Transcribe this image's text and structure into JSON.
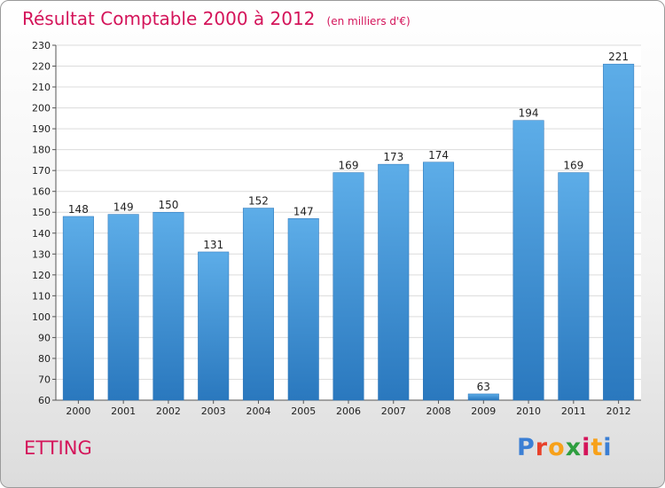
{
  "chart_data": {
    "type": "bar",
    "title": "Résultat Comptable 2000 à 2012",
    "subtitle": "(en milliers d'€)",
    "categories": [
      "2000",
      "2001",
      "2002",
      "2003",
      "2004",
      "2005",
      "2006",
      "2007",
      "2008",
      "2009",
      "2010",
      "2011",
      "2012"
    ],
    "values": [
      148,
      149,
      150,
      131,
      152,
      147,
      169,
      173,
      174,
      63,
      194,
      169,
      221
    ],
    "ylim": [
      60,
      230
    ],
    "ytick_step": 10,
    "grid": true,
    "bar_color": "#3f8fd6",
    "bar_color_light": "#5dade8",
    "bar_color_dark": "#2a78be"
  },
  "commune": "ETTING",
  "brand": {
    "letters": [
      "P",
      "r",
      "o",
      "x",
      "i",
      "t",
      "i"
    ],
    "colors": [
      "#3b7fd4",
      "#e8412a",
      "#f7a11a",
      "#2e9e3f",
      "#d4145a",
      "#f7a11a",
      "#3b7fd4"
    ]
  }
}
